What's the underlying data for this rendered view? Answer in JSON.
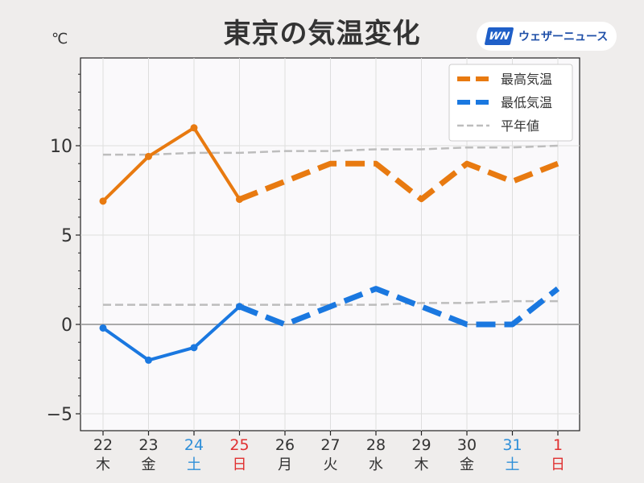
{
  "title": "東京の気温変化",
  "unit": "℃",
  "logo": {
    "mark": "WN",
    "text": "ウェザーニュース"
  },
  "chart_data": {
    "type": "line",
    "title": "東京の気温変化",
    "ylabel": "℃",
    "ylim": [
      -5.5,
      14.8
    ],
    "yticks": [
      -5,
      0,
      5,
      10
    ],
    "ytick_labels": [
      "−5",
      "0",
      "5",
      "10"
    ],
    "grid": true,
    "legend_position": "top-right",
    "categories": [
      {
        "date": "22",
        "dow": "木",
        "color": "#333333"
      },
      {
        "date": "23",
        "dow": "金",
        "color": "#333333"
      },
      {
        "date": "24",
        "dow": "土",
        "color": "#2f8fd8"
      },
      {
        "date": "25",
        "dow": "日",
        "color": "#e03030"
      },
      {
        "date": "26",
        "dow": "月",
        "color": "#333333"
      },
      {
        "date": "27",
        "dow": "火",
        "color": "#333333"
      },
      {
        "date": "28",
        "dow": "水",
        "color": "#333333"
      },
      {
        "date": "29",
        "dow": "木",
        "color": "#333333"
      },
      {
        "date": "30",
        "dow": "金",
        "color": "#333333"
      },
      {
        "date": "31",
        "dow": "土",
        "color": "#2f8fd8"
      },
      {
        "date": "1",
        "dow": "日",
        "color": "#e03030"
      }
    ],
    "series": [
      {
        "name": "最高気温",
        "color": "#e87a10",
        "observed": [
          6.9,
          9.4,
          11.0,
          7.0
        ],
        "forecast": [
          7.0,
          8.0,
          9.0,
          9.0,
          7.0,
          9.0,
          8.0,
          9.0
        ]
      },
      {
        "name": "最低気温",
        "color": "#1a78e0",
        "observed": [
          -0.2,
          -2.0,
          -1.3,
          1.0
        ],
        "forecast": [
          1.0,
          0.0,
          1.0,
          2.0,
          1.0,
          0.0,
          0.0,
          2.0
        ]
      },
      {
        "name": "平年値",
        "color": "#bdbdbd",
        "high": [
          9.5,
          9.5,
          9.6,
          9.6,
          9.7,
          9.7,
          9.8,
          9.8,
          9.9,
          9.9,
          10.0
        ],
        "low": [
          1.1,
          1.1,
          1.1,
          1.1,
          1.1,
          1.1,
          1.1,
          1.2,
          1.2,
          1.3,
          1.3
        ]
      }
    ]
  }
}
